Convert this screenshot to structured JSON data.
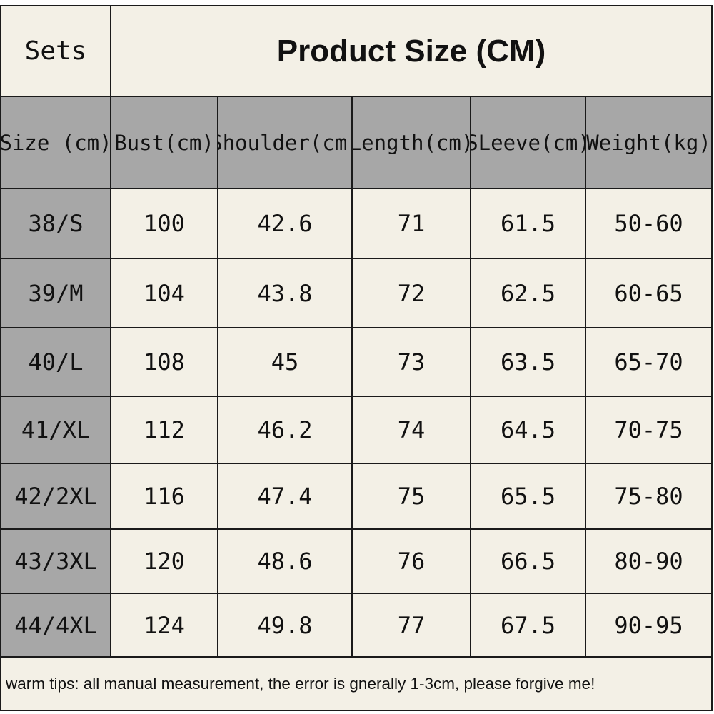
{
  "table": {
    "title_left": "Sets",
    "title_right": "Product Size (CM)",
    "headers": [
      "Size (cm)",
      "Bust(cm)",
      "Shoulder(cm)",
      "Length(cm)",
      "SLeeve(cm)",
      "Weight(kg)"
    ],
    "rows": [
      [
        "38/S",
        "100",
        "42.6",
        "71",
        "61.5",
        "50-60"
      ],
      [
        "39/M",
        "104",
        "43.8",
        "72",
        "62.5",
        "60-65"
      ],
      [
        "40/L",
        "108",
        "45",
        "73",
        "63.5",
        "65-70"
      ],
      [
        "41/XL",
        "112",
        "46.2",
        "74",
        "64.5",
        "70-75"
      ],
      [
        "42/2XL",
        "116",
        "47.4",
        "75",
        "65.5",
        "75-80"
      ],
      [
        "43/3XL",
        "120",
        "48.6",
        "76",
        "66.5",
        "80-90"
      ],
      [
        "44/4XL",
        "124",
        "49.8",
        "77",
        "67.5",
        "90-95"
      ]
    ],
    "tips": "warm tips: all manual measurement, the error is gnerally 1-3cm, please forgive me!"
  },
  "colors": {
    "header_gray": "#a7a7a7",
    "cell_cream": "#f3f0e6",
    "border": "#1a1a1a",
    "text": "#111111"
  }
}
